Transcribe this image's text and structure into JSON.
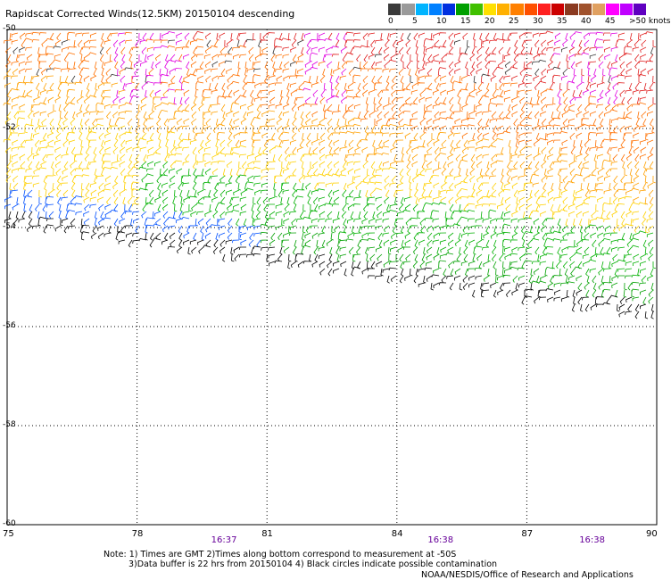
{
  "title": "Rapidscat Corrected Winds(12.5KM) 20150104 descending",
  "legend": {
    "colors": [
      "#3a3a3a",
      "#9a9a9a",
      "#00b4ff",
      "#0080ff",
      "#0030e0",
      "#00a000",
      "#40c000",
      "#ffe000",
      "#ffb000",
      "#ff8000",
      "#ff5000",
      "#ff2020",
      "#cc0000",
      "#8b3a20",
      "#a0522d",
      "#e0a060",
      "#ff00ff",
      "#c000ff",
      "#6000c0"
    ],
    "labels": [
      "0",
      "5",
      "10",
      "15",
      "20",
      "25",
      "30",
      "35",
      "40",
      "45",
      ">50 knots"
    ]
  },
  "axes": {
    "lat_labels": [
      "-50",
      "-52",
      "-54",
      "-56",
      "-58",
      "-60"
    ],
    "lat_values": [
      -50,
      -52,
      -54,
      -56,
      -58,
      -60
    ],
    "lon_labels": [
      "75",
      "78",
      "81",
      "84",
      "87",
      "90"
    ],
    "lon_values": [
      75,
      78,
      81,
      84,
      87,
      90
    ],
    "lon_range": [
      75,
      90
    ],
    "lat_range": [
      -60,
      -50
    ],
    "grid": true
  },
  "times": [
    {
      "label": "16:37",
      "lon": 80
    },
    {
      "label": "16:38",
      "lon": 85
    },
    {
      "label": "16:38",
      "lon": 88.5
    }
  ],
  "notes": {
    "line1": "Note: 1) Times are GMT 2)Times along bottom correspond to measurement at -50S",
    "line2": "3)Data buffer is 22 hrs from 20150104 4) Black circles indicate possible contamination"
  },
  "credit": "NOAA/NESDIS/Office of Research and Applications"
}
